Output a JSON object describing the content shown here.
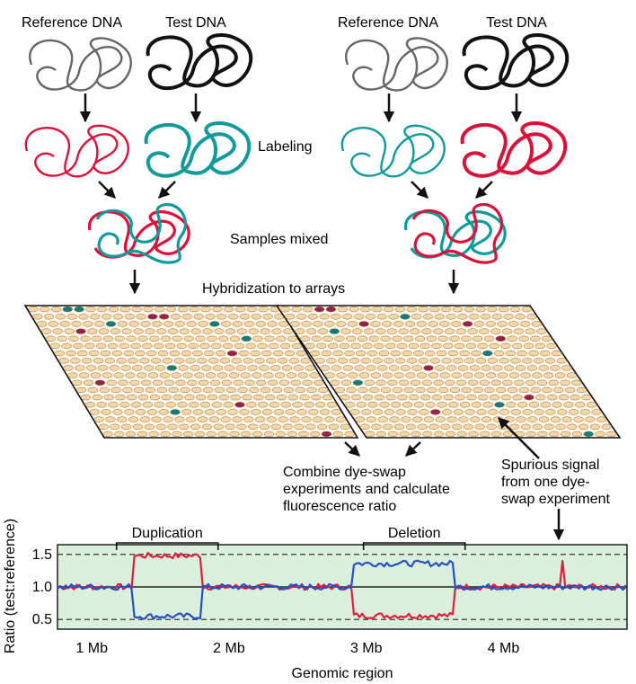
{
  "labels": {
    "reference_left": "Reference DNA",
    "test_left": "Test DNA",
    "reference_right": "Reference DNA",
    "test_right": "Test DNA",
    "labeling": "Labeling",
    "samples_mixed": "Samples mixed",
    "hybridization": "Hybridization to arrays",
    "combine_line1": "Combine dye-swap",
    "combine_line2": "experiments and calculate",
    "combine_line3": "fluorescence ratio",
    "spurious_line1": "Spurious signal",
    "spurious_line2": "from one dye-",
    "spurious_line3": "swap experiment",
    "duplication": "Duplication",
    "deletion": "Deletion"
  },
  "colors": {
    "red_dye": "#d9123a",
    "teal_dye": "#129a9a",
    "reference_gray": "#666666",
    "test_black": "#111111",
    "spot_fill": "#f6d7a5",
    "red_spot": "#9a1f49",
    "teal_spot": "#127c7c",
    "plot_bg": "#daf0dc",
    "trace_red": "#e01e3c",
    "trace_blue": "#2a4fbf"
  },
  "chart_data": {
    "type": "line",
    "xlabel": "Genomic region",
    "ylabel": "Ratio (test:reference)",
    "x_ticks": [
      "1 Mb",
      "2 Mb",
      "3 Mb",
      "4 Mb"
    ],
    "x_tick_values": [
      1,
      2,
      3,
      4
    ],
    "y_ticks": [
      "0.5",
      "1.0",
      "1.5"
    ],
    "y_tick_values": [
      0.5,
      1.0,
      1.5
    ],
    "xlim": [
      0.75,
      4.9
    ],
    "ylim": [
      0.35,
      1.65
    ],
    "grid": "dashed lines at 0.5 and 1.5, solid at 1.0",
    "series": [
      {
        "color": "#e01e3c",
        "segments": [
          {
            "from": 0.75,
            "to": 1.3,
            "level": 1.0
          },
          {
            "from": 1.3,
            "to": 1.8,
            "level": 1.48
          },
          {
            "from": 1.8,
            "to": 2.9,
            "level": 1.0
          },
          {
            "from": 2.9,
            "to": 3.65,
            "level": 0.56
          },
          {
            "from": 3.65,
            "to": 4.9,
            "level": 1.0
          }
        ],
        "spike": {
          "x": 4.43,
          "value": 1.4
        }
      },
      {
        "color": "#2a4fbf",
        "segments": [
          {
            "from": 0.75,
            "to": 1.3,
            "level": 1.0
          },
          {
            "from": 1.3,
            "to": 1.8,
            "level": 0.55
          },
          {
            "from": 1.8,
            "to": 2.9,
            "level": 1.0
          },
          {
            "from": 2.9,
            "to": 3.65,
            "level": 1.36
          },
          {
            "from": 3.65,
            "to": 4.9,
            "level": 1.0
          }
        ]
      }
    ],
    "annotations": [
      {
        "text": "Duplication",
        "from": 1.18,
        "to": 1.92
      },
      {
        "text": "Deletion",
        "from": 2.98,
        "to": 3.72
      }
    ]
  }
}
